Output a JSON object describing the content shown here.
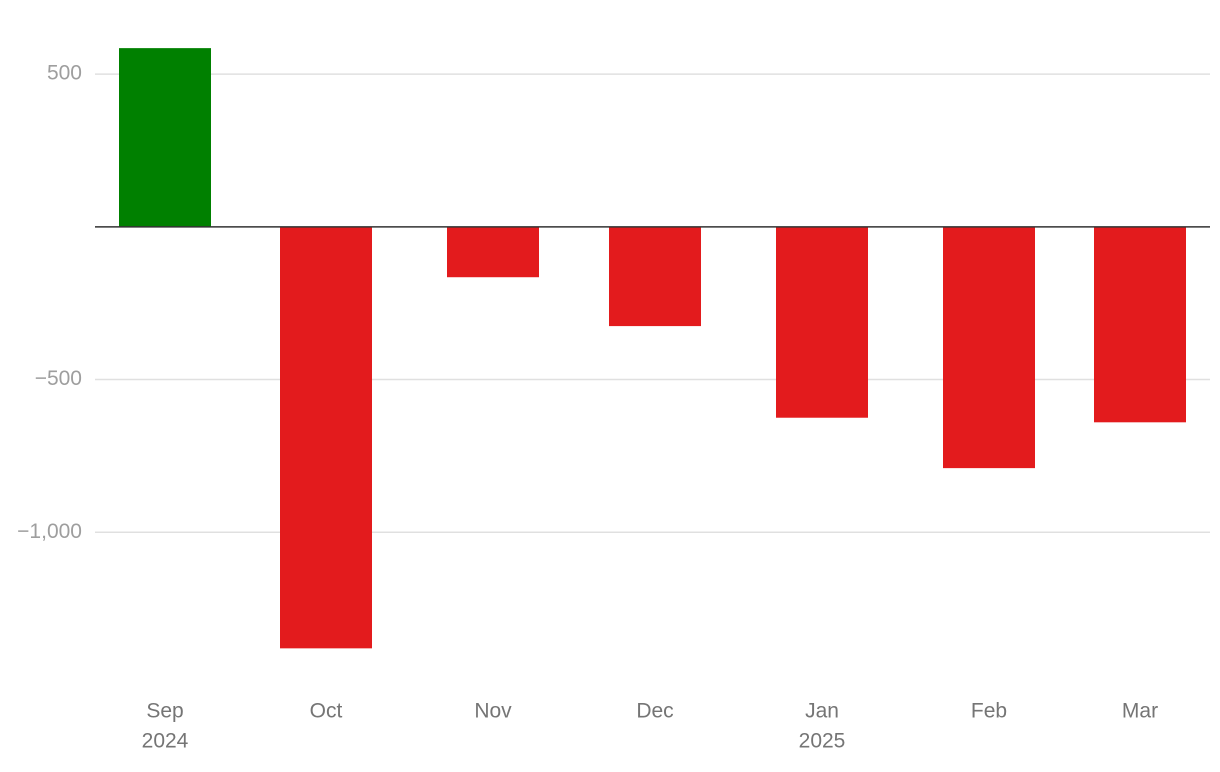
{
  "chart_data": {
    "type": "bar",
    "categories": [
      "Sep",
      "Oct",
      "Nov",
      "Dec",
      "Jan",
      "Feb",
      "Mar"
    ],
    "years": [
      "2024",
      null,
      null,
      null,
      "2025",
      null,
      null
    ],
    "values": [
      585,
      -1380,
      -165,
      -325,
      -625,
      -790,
      -640
    ],
    "positive_color": "#008000",
    "negative_color": "#e31b1d",
    "ylim": [
      -1500,
      700
    ],
    "yticks": [
      {
        "value": -1000,
        "label": "−1,000"
      },
      {
        "value": -500,
        "label": "−500"
      },
      500
    ],
    "grid": true
  }
}
